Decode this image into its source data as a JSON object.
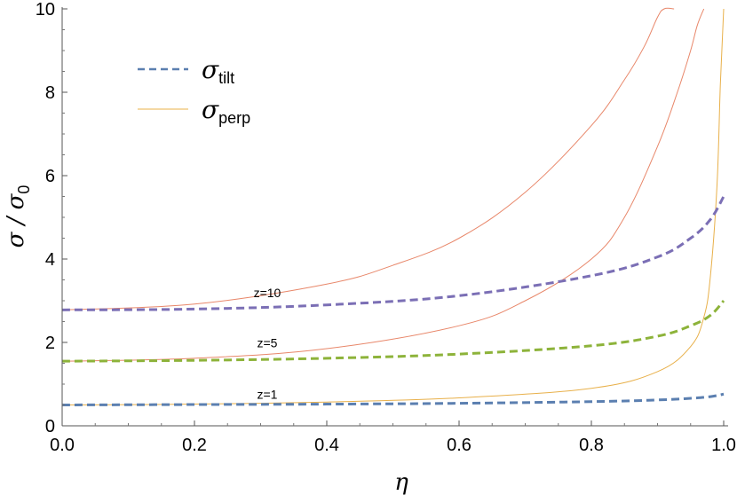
{
  "chart_data": {
    "type": "line",
    "title": "",
    "xlabel": "η",
    "ylabel": "σ / σ₀",
    "ylabel_parts": {
      "main": "σ / σ",
      "sub": "0"
    },
    "xlim": [
      0,
      1
    ],
    "ylim": [
      0,
      10
    ],
    "xticks": [
      "0.0",
      "0.2",
      "0.4",
      "0.6",
      "0.8",
      "1.0"
    ],
    "yticks": [
      "0",
      "2",
      "4",
      "6",
      "8",
      "10"
    ],
    "grid": false,
    "legend_position": "top-left",
    "legend": [
      {
        "symbol": "σ",
        "sub": "tilt",
        "style": "dashed",
        "color": "#5B7FB0"
      },
      {
        "symbol": "σ",
        "sub": "perp",
        "style": "solid",
        "color": "#E8B04A"
      }
    ],
    "series": [
      {
        "name": "σ_tilt z=1",
        "z": 1,
        "kind": "tilt",
        "color": "#5B7FB0",
        "x": [
          0,
          0.2,
          0.4,
          0.6,
          0.8,
          0.9,
          0.95,
          0.98,
          1.0
        ],
        "y": [
          0.5,
          0.51,
          0.52,
          0.54,
          0.58,
          0.62,
          0.66,
          0.7,
          0.76
        ]
      },
      {
        "name": "σ_perp z=1",
        "z": 1,
        "kind": "perp",
        "color": "#E8B04A",
        "x": [
          0,
          0.2,
          0.4,
          0.6,
          0.8,
          0.9,
          0.95,
          0.97,
          0.98,
          0.99,
          0.995,
          1.0
        ],
        "y": [
          0.5,
          0.52,
          0.57,
          0.67,
          0.9,
          1.3,
          1.9,
          2.6,
          3.6,
          5.8,
          8.2,
          10.0
        ]
      },
      {
        "name": "σ_tilt z=5",
        "z": 5,
        "kind": "tilt",
        "color": "#8DB33A",
        "x": [
          0,
          0.2,
          0.4,
          0.6,
          0.8,
          0.9,
          0.95,
          0.98,
          1.0
        ],
        "y": [
          1.55,
          1.57,
          1.62,
          1.72,
          1.92,
          2.15,
          2.4,
          2.65,
          3.0
        ]
      },
      {
        "name": "σ_perp z=5",
        "z": 5,
        "kind": "perp",
        "color": "#E8876A",
        "x": [
          0,
          0.2,
          0.4,
          0.6,
          0.7,
          0.8,
          0.85,
          0.9,
          0.93,
          0.95,
          0.96,
          0.97
        ],
        "y": [
          1.55,
          1.62,
          1.85,
          2.4,
          3.0,
          4.0,
          5.0,
          6.7,
          8.0,
          9.0,
          9.6,
          10.0
        ]
      },
      {
        "name": "σ_tilt z=10",
        "z": 10,
        "kind": "tilt",
        "color": "#7B6FB5",
        "x": [
          0,
          0.2,
          0.4,
          0.6,
          0.8,
          0.9,
          0.95,
          0.98,
          1.0
        ],
        "y": [
          2.78,
          2.8,
          2.9,
          3.12,
          3.6,
          4.05,
          4.5,
          4.95,
          5.5
        ]
      },
      {
        "name": "σ_perp z=10",
        "z": 10,
        "kind": "perp",
        "color": "#E8876A",
        "x": [
          0,
          0.2,
          0.4,
          0.5,
          0.6,
          0.7,
          0.8,
          0.85,
          0.88,
          0.9,
          0.91,
          0.925
        ],
        "y": [
          2.78,
          2.92,
          3.4,
          3.85,
          4.5,
          5.6,
          7.2,
          8.3,
          9.1,
          9.8,
          10.0,
          10.0
        ]
      }
    ],
    "annotations": [
      {
        "text": "z=10",
        "x": 0.31,
        "y": 3.08
      },
      {
        "text": "z=5",
        "x": 0.31,
        "y": 1.88
      },
      {
        "text": "z=1",
        "x": 0.31,
        "y": 0.65
      }
    ]
  }
}
